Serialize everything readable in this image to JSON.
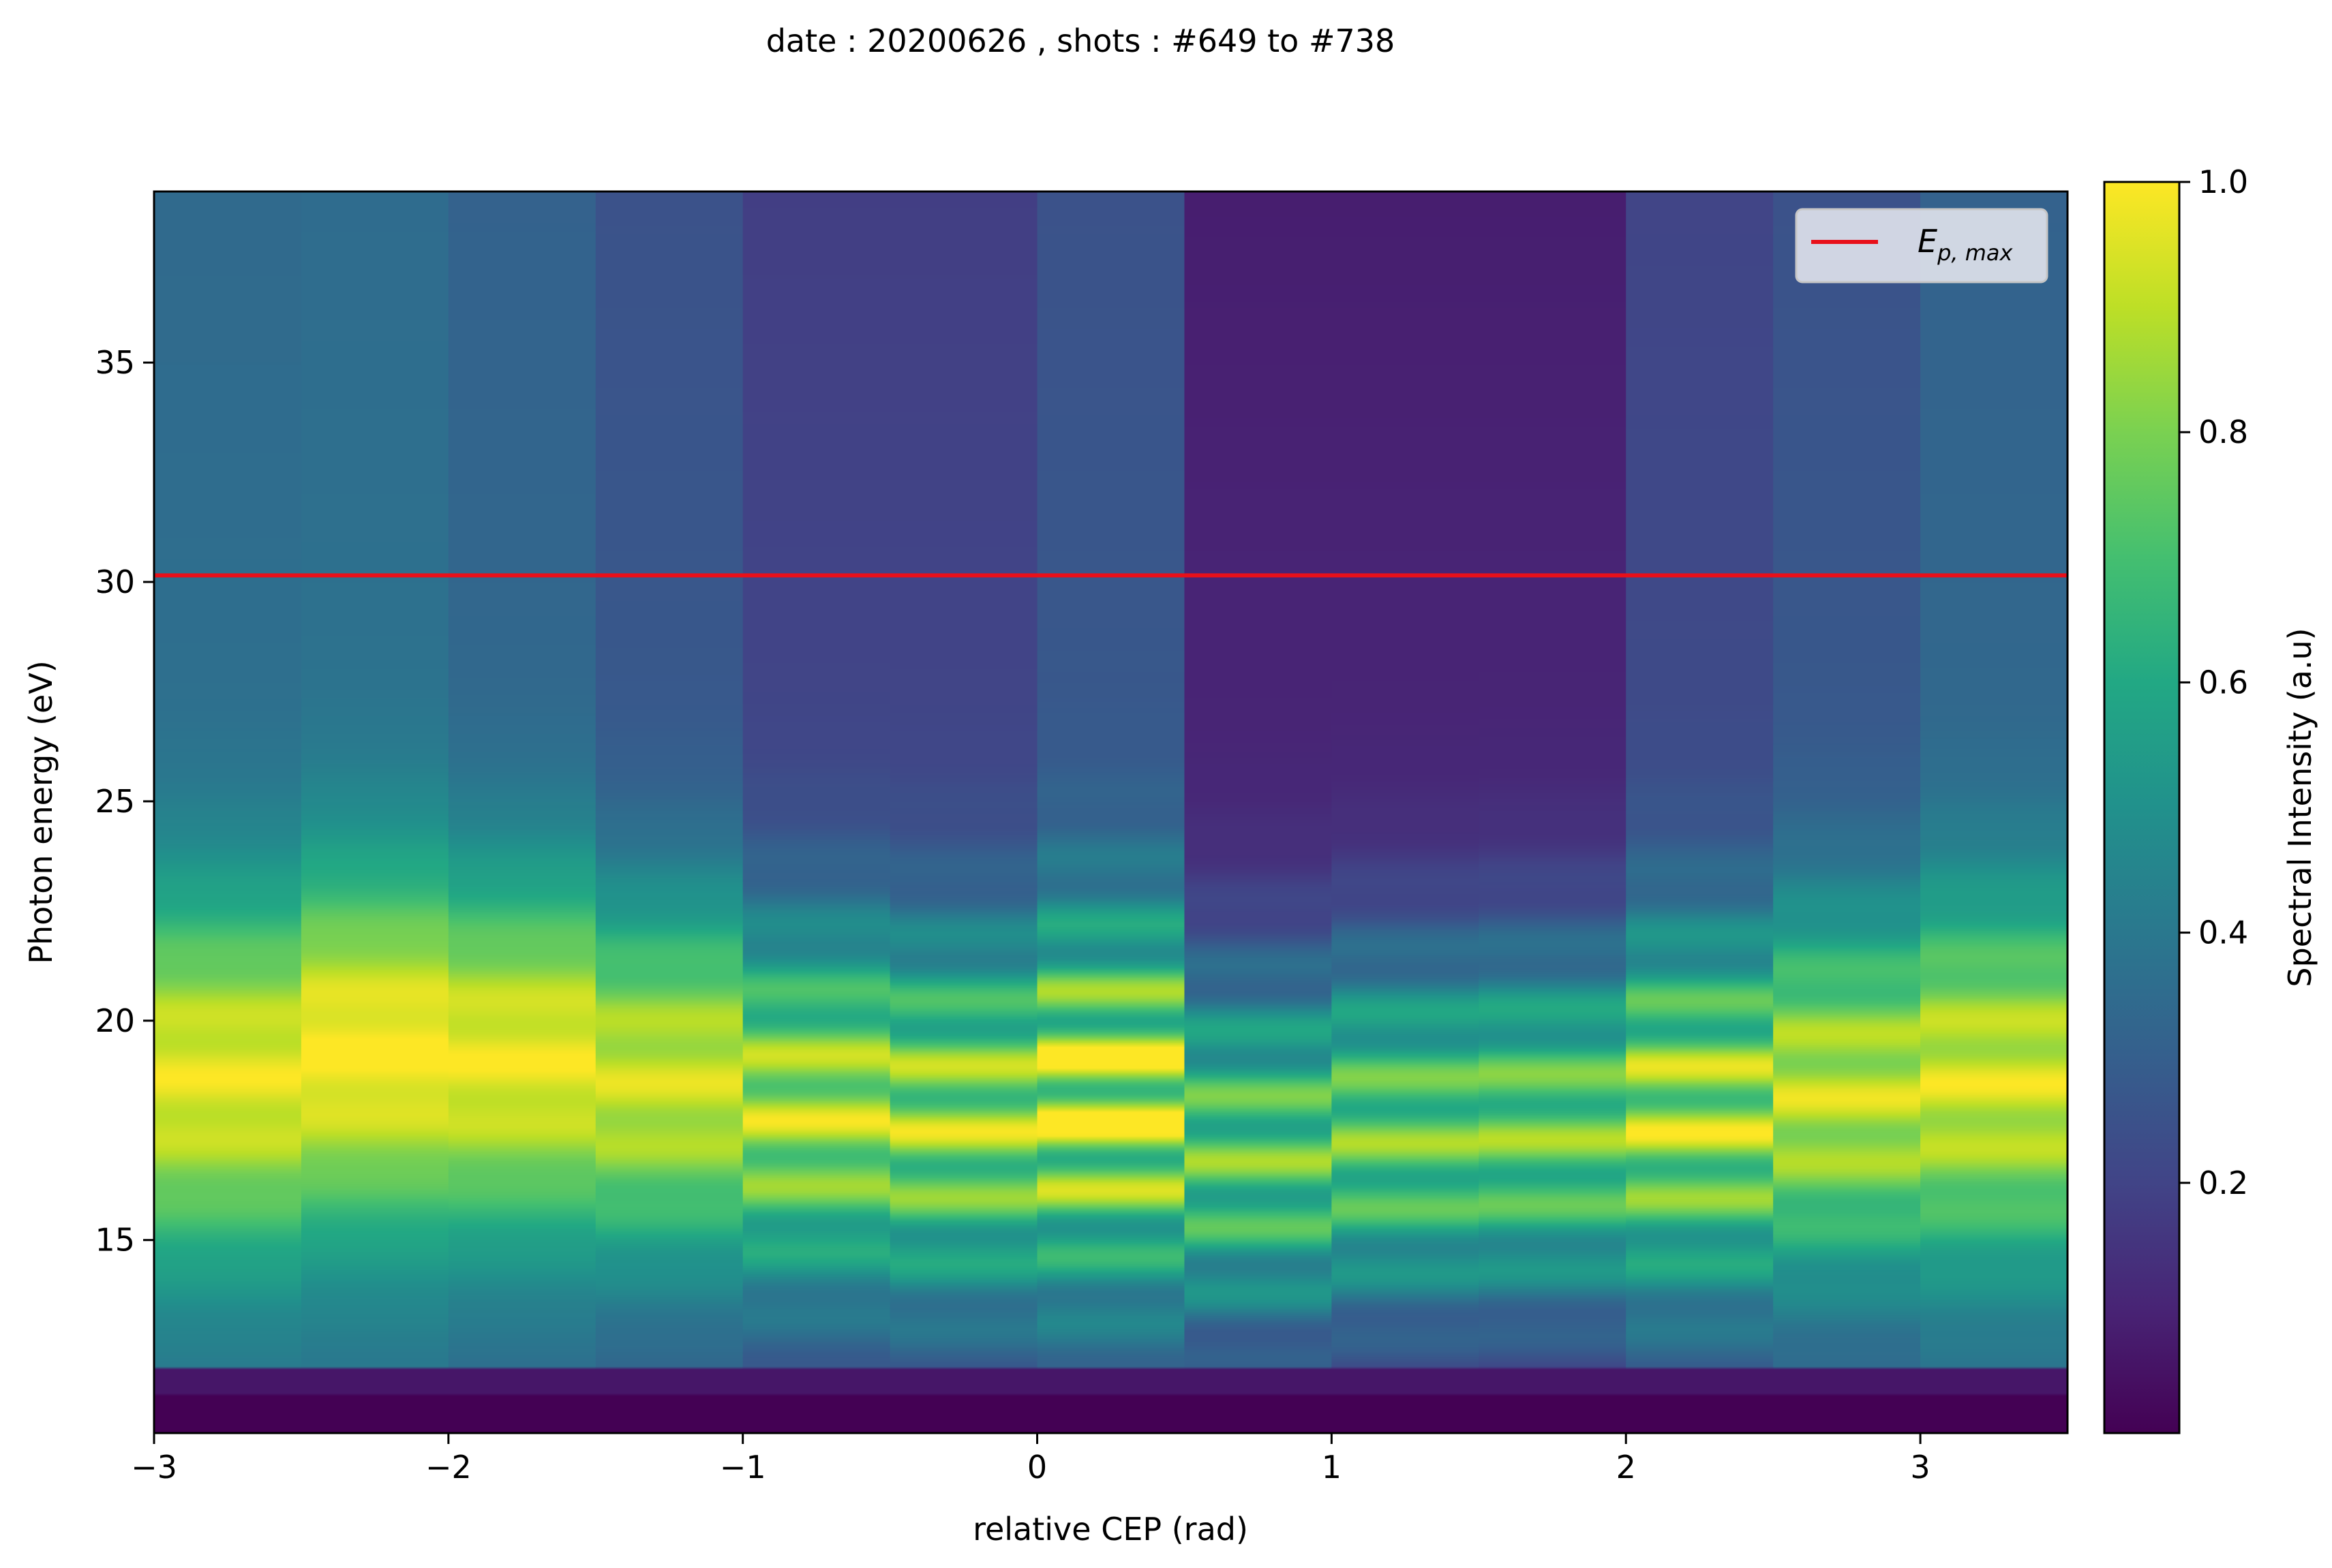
{
  "chart_data": {
    "type": "heatmap",
    "title": "date : 20200626 , shots : #649 to #738",
    "xlabel": "relative CEP (rad)",
    "ylabel": "Photon energy (eV)",
    "xlim": [
      -3,
      3.5
    ],
    "ylim": [
      10.6,
      38.9
    ],
    "x_ticks": [
      -3,
      -2,
      -1,
      0,
      1,
      2,
      3
    ],
    "x_tick_labels": [
      "−3",
      "−2",
      "−1",
      "0",
      "1",
      "2",
      "3"
    ],
    "y_ticks": [
      15,
      20,
      25,
      30,
      35
    ],
    "y_tick_labels": [
      "15",
      "20",
      "25",
      "30",
      "35"
    ],
    "x_bin_edges": [
      -3,
      -2.5,
      -2,
      -1.5,
      -1,
      -0.5,
      0,
      0.5,
      1,
      1.5,
      2,
      2.5,
      3,
      3.5
    ],
    "colormap": "viridis",
    "colorbar": {
      "label": "Spectral Intensity (a.u)",
      "range": [
        0.0,
        1.0
      ],
      "ticks": [
        0.2,
        0.4,
        0.6,
        0.8,
        1.0
      ],
      "tick_labels": [
        "0.2",
        "0.4",
        "0.6",
        "0.8",
        "1.0"
      ]
    },
    "overall_envelope": [
      0.36,
      0.4,
      0.37,
      0.32,
      0.26,
      0.23,
      0.3,
      0.13,
      0.15,
      0.16,
      0.25,
      0.3,
      0.33
    ],
    "background_level_high_energy": [
      0.36,
      0.37,
      0.33,
      0.27,
      0.2,
      0.2,
      0.27,
      0.1,
      0.1,
      0.1,
      0.22,
      0.27,
      0.33
    ],
    "peak_energy_center": [
      18.7,
      19.3,
      19.1,
      18.6,
      18.0,
      17.8,
      18.2,
      17.0,
      17.4,
      17.5,
      17.9,
      18.3,
      18.6
    ],
    "fringe_contrast": [
      0.06,
      0.05,
      0.06,
      0.08,
      0.2,
      0.24,
      0.35,
      0.22,
      0.2,
      0.2,
      0.25,
      0.12,
      0.1
    ],
    "fringe_period_eV": 1.55,
    "fringe_phase": [
      0.0,
      0.3,
      0.2,
      0.1,
      1.2,
      1.4,
      2.3,
      0.9,
      0.8,
      0.9,
      1.9,
      0.3,
      0.2
    ],
    "cutoff_energy_eV": 12.1,
    "reference_line": {
      "name": "E_p,max",
      "y": 30.15,
      "color": "#e8101a"
    },
    "legend": {
      "placement": "upper-right",
      "entries": [
        {
          "label_main": "E",
          "label_sub": "p, max",
          "color": "#e8101a"
        }
      ]
    },
    "grid": false
  }
}
